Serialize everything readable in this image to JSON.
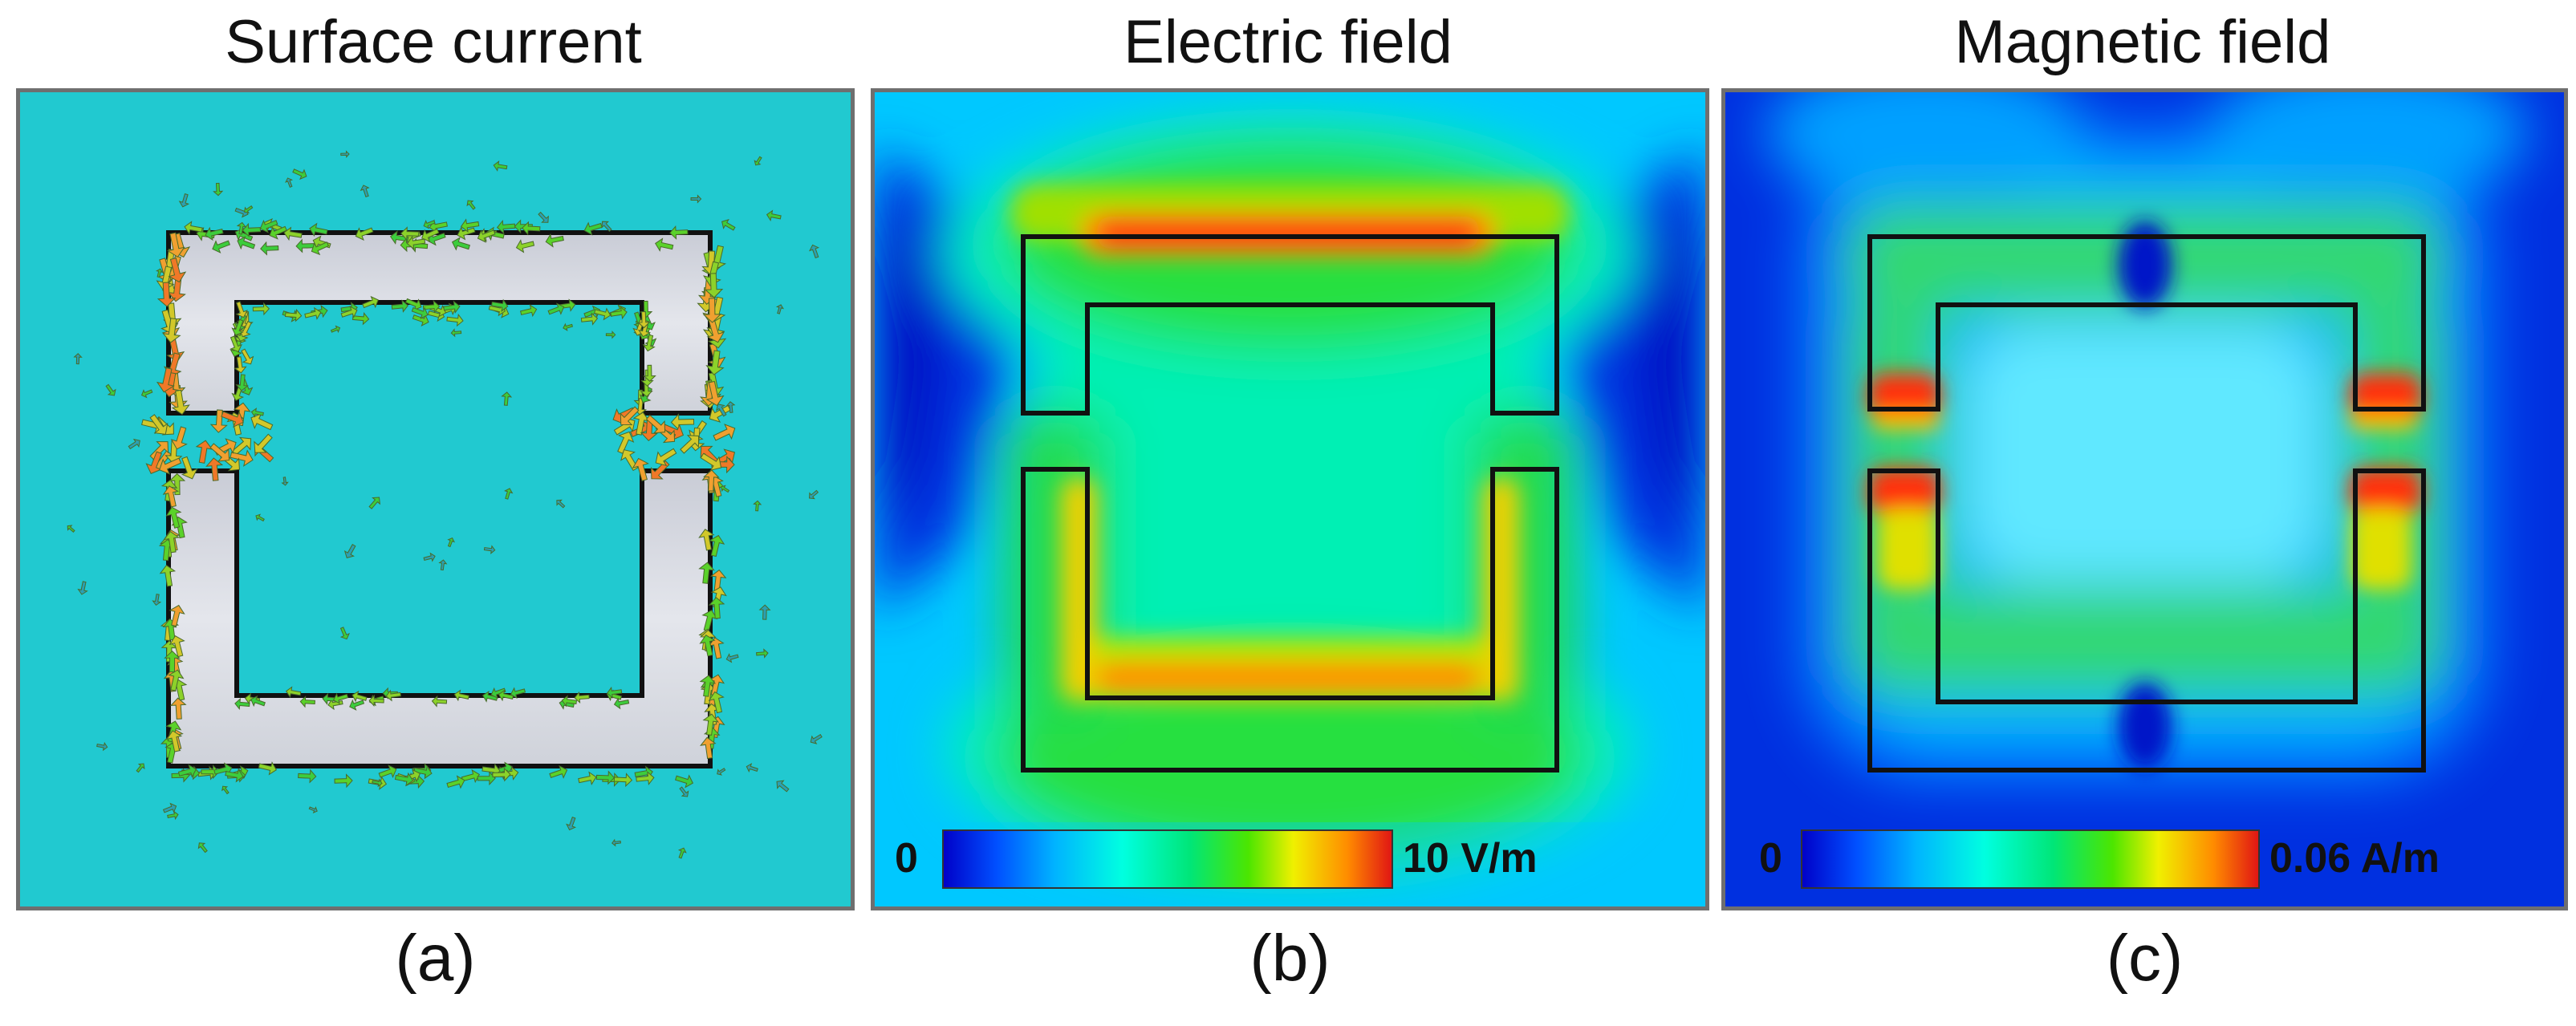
{
  "panels": [
    {
      "title": "Surface current",
      "caption": "(a)"
    },
    {
      "title": "Electric field",
      "caption": "(b)",
      "colorbar": {
        "min": "0",
        "max": "10 V/m"
      }
    },
    {
      "title": "Magnetic field",
      "caption": "(c)",
      "colorbar": {
        "min": "0",
        "max": "0.06 A/m"
      }
    }
  ],
  "colors": {
    "cyan_background": "#21c9d0",
    "metal": "#dcdfe6",
    "outline": "#111111",
    "colormap": [
      "#0000c8",
      "#0050ff",
      "#00b4ff",
      "#00ffe0",
      "#00e678",
      "#4ce600",
      "#f0f000",
      "#ff8c00",
      "#e01414"
    ]
  }
}
